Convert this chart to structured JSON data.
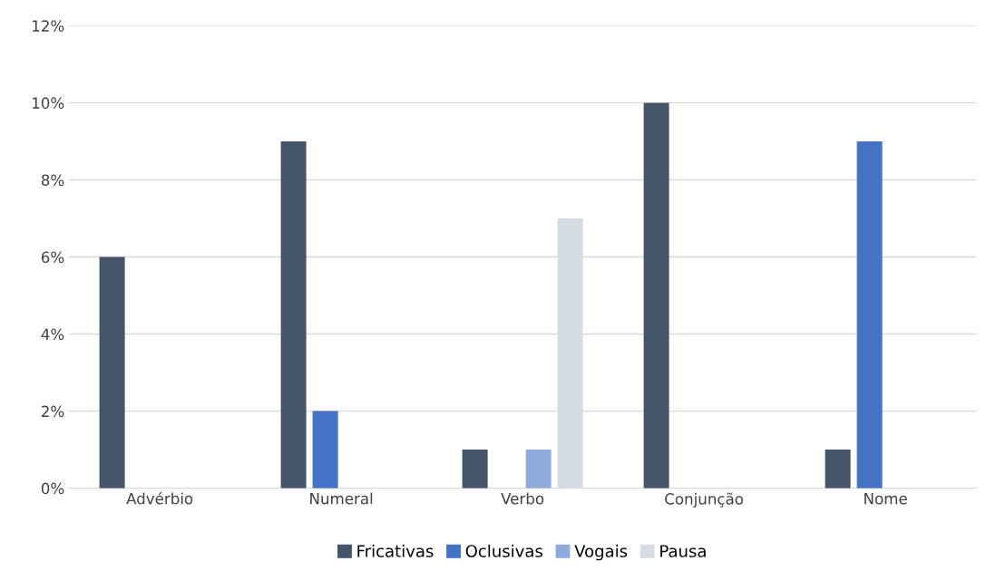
{
  "chart_data": {
    "type": "bar",
    "categories": [
      "Advérbio",
      "Numeral",
      "Verbo",
      "Conjunção",
      "Nome"
    ],
    "series": [
      {
        "name": "Fricativas",
        "color": "#44546a",
        "values": [
          6,
          9,
          1,
          10,
          1
        ]
      },
      {
        "name": "Oclusivas",
        "color": "#4472c4",
        "values": [
          null,
          2,
          null,
          null,
          9
        ]
      },
      {
        "name": "Vogais",
        "color": "#8faadc",
        "values": [
          null,
          null,
          1,
          null,
          null
        ]
      },
      {
        "name": "Pausa",
        "color": "#d6dce5",
        "values": [
          null,
          null,
          7,
          null,
          null
        ]
      }
    ],
    "ylim": [
      0,
      12
    ],
    "yticks": [
      {
        "value": 0,
        "label": "0%"
      },
      {
        "value": 2,
        "label": "2%"
      },
      {
        "value": 4,
        "label": "4%"
      },
      {
        "value": 6,
        "label": "6%"
      },
      {
        "value": 8,
        "label": "8%"
      },
      {
        "value": 10,
        "label": "10%"
      },
      {
        "value": 12,
        "label": "12%"
      }
    ],
    "grid": "y",
    "legend": "bottom"
  }
}
